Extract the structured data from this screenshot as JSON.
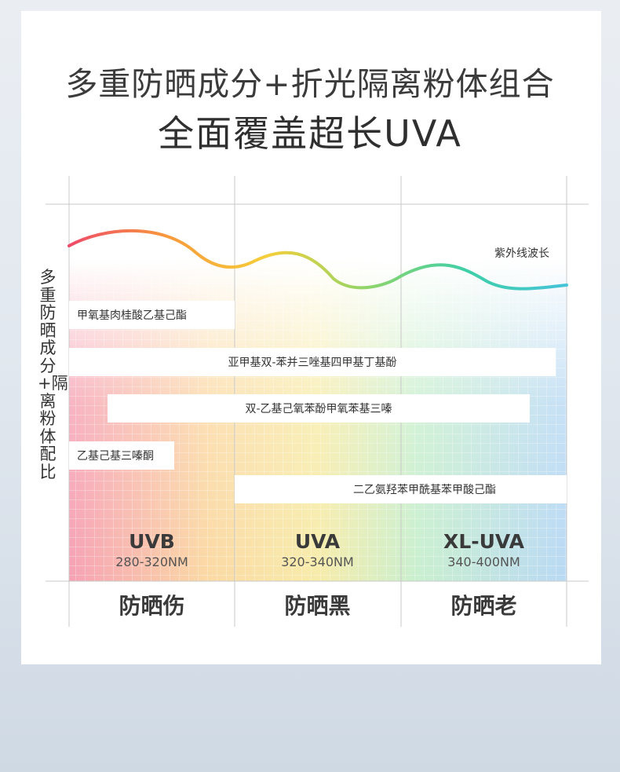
{
  "title_line1": "多重防晒成分+折光隔离粉体组合",
  "title_line2": "全面覆盖超长UVA",
  "chart_data": {
    "type": "range-bar",
    "y_axis_label": "多重防晒成分+隔离粉体配比",
    "wave_label": "紫外线波长",
    "bands": [
      {
        "name": "UVB",
        "range": "280-320NM",
        "effect": "防晒伤",
        "nm_start": 280,
        "nm_end": 320
      },
      {
        "name": "UVA",
        "range": "320-340NM",
        "effect": "防晒黑",
        "nm_start": 320,
        "nm_end": 340
      },
      {
        "name": "XL-UVA",
        "range": "340-400NM",
        "effect": "防晒老",
        "nm_start": 340,
        "nm_end": 400
      }
    ],
    "ingredients": [
      {
        "name": "甲氧基肉桂酸乙基己酯",
        "coverage_start_nm": 280,
        "coverage_end_nm": 320
      },
      {
        "name": "亚甲基双-苯并三唑基四甲基丁基酚",
        "coverage_start_nm": 280,
        "coverage_end_nm": 400
      },
      {
        "name": "双-乙基己氧苯酚甲氧苯基三嗪",
        "coverage_start_nm": 280,
        "coverage_end_nm": 400
      },
      {
        "name": "乙基己基三嗪酮",
        "coverage_start_nm": 280,
        "coverage_end_nm": 320
      },
      {
        "name": "二乙氨羟苯甲酰基苯甲酸己酯",
        "coverage_start_nm": 320,
        "coverage_end_nm": 400
      }
    ],
    "wave_colors": [
      "#ee4a6a",
      "#f79a3c",
      "#f5cf3a",
      "#8fd56a",
      "#3fcfa8",
      "#45c3d8"
    ]
  }
}
